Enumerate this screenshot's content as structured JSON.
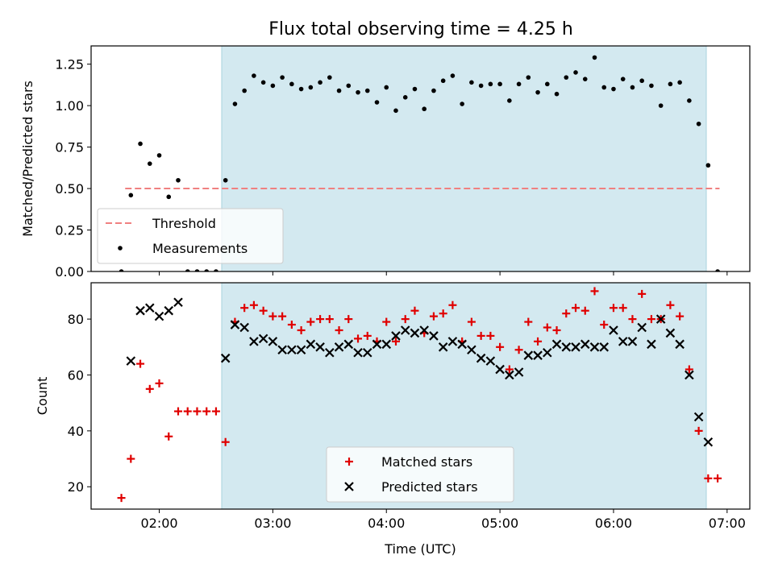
{
  "title": "Flux total observing time = 4.25 h",
  "colors": {
    "observing_window": "#d3e9f0",
    "observing_window_edge": "#a8d3de",
    "threshold": "#f08080",
    "measurements": "#000000",
    "matched": "#e00000",
    "predicted": "#000000"
  },
  "chart_data": [
    {
      "type": "scatter",
      "panel": "top",
      "ylabel": "Matched/Predicted stars",
      "xlabel": "",
      "ylim": [
        0,
        1.36
      ],
      "yticks": [
        0.0,
        0.25,
        0.5,
        0.75,
        1.0,
        1.25
      ],
      "ytick_labels": [
        "0.00",
        "0.25",
        "0.50",
        "0.75",
        "1.00",
        "1.25"
      ],
      "x_ticks_shown": false,
      "observing_window": [
        "02:33",
        "06:49"
      ],
      "threshold": {
        "name": "Threshold",
        "value": 0.5,
        "x_range": [
          "01:42",
          "06:56"
        ],
        "style": "dashed"
      },
      "legend": {
        "position": "lower-left",
        "entries": [
          "Threshold",
          "Measurements"
        ]
      },
      "series": [
        {
          "name": "Measurements",
          "marker": "dot",
          "x": [
            "01:40",
            "01:45",
            "01:50",
            "01:55",
            "02:00",
            "02:05",
            "02:10",
            "02:15",
            "02:20",
            "02:25",
            "02:30",
            "02:35",
            "02:40",
            "02:45",
            "02:50",
            "02:55",
            "03:00",
            "03:05",
            "03:10",
            "03:15",
            "03:20",
            "03:25",
            "03:30",
            "03:35",
            "03:40",
            "03:45",
            "03:50",
            "03:55",
            "04:00",
            "04:05",
            "04:10",
            "04:15",
            "04:20",
            "04:25",
            "04:30",
            "04:35",
            "04:40",
            "04:45",
            "04:50",
            "04:55",
            "05:00",
            "05:05",
            "05:10",
            "05:15",
            "05:20",
            "05:25",
            "05:30",
            "05:35",
            "05:40",
            "05:45",
            "05:50",
            "05:55",
            "06:00",
            "06:05",
            "06:10",
            "06:15",
            "06:20",
            "06:25",
            "06:30",
            "06:35",
            "06:40",
            "06:45",
            "06:50",
            "06:55"
          ],
          "y": [
            0.0,
            0.46,
            0.77,
            0.65,
            0.7,
            0.45,
            0.55,
            0.0,
            0.0,
            0.0,
            0.0,
            0.55,
            1.01,
            1.09,
            1.18,
            1.14,
            1.12,
            1.17,
            1.13,
            1.1,
            1.11,
            1.14,
            1.17,
            1.09,
            1.12,
            1.08,
            1.09,
            1.02,
            1.11,
            0.97,
            1.05,
            1.1,
            0.98,
            1.09,
            1.15,
            1.18,
            1.01,
            1.14,
            1.12,
            1.13,
            1.13,
            1.03,
            1.13,
            1.17,
            1.08,
            1.13,
            1.07,
            1.17,
            1.2,
            1.16,
            1.29,
            1.11,
            1.1,
            1.16,
            1.11,
            1.15,
            1.12,
            1.0,
            1.13,
            1.14,
            1.03,
            0.89,
            0.64,
            0.0
          ]
        }
      ]
    },
    {
      "type": "scatter",
      "panel": "bottom",
      "ylabel": "Count",
      "xlabel": "Time (UTC)",
      "ylim": [
        12,
        93
      ],
      "yticks": [
        20,
        40,
        60,
        80
      ],
      "ytick_labels": [
        "20",
        "40",
        "60",
        "80"
      ],
      "xlim": [
        "01:24",
        "07:12"
      ],
      "xticks": [
        "02:00",
        "03:00",
        "04:00",
        "05:00",
        "06:00",
        "07:00"
      ],
      "observing_window": [
        "02:33",
        "06:49"
      ],
      "legend": {
        "position": "lower-center",
        "entries": [
          "Matched stars",
          "Predicted stars"
        ]
      },
      "series": [
        {
          "name": "Matched stars",
          "marker": "plus",
          "x": [
            "01:40",
            "01:45",
            "01:50",
            "01:55",
            "02:00",
            "02:05",
            "02:10",
            "02:15",
            "02:20",
            "02:25",
            "02:30",
            "02:35",
            "02:40",
            "02:45",
            "02:50",
            "02:55",
            "03:00",
            "03:05",
            "03:10",
            "03:15",
            "03:20",
            "03:25",
            "03:30",
            "03:35",
            "03:40",
            "03:45",
            "03:50",
            "03:55",
            "04:00",
            "04:05",
            "04:10",
            "04:15",
            "04:20",
            "04:25",
            "04:30",
            "04:35",
            "04:40",
            "04:45",
            "04:50",
            "04:55",
            "05:00",
            "05:05",
            "05:10",
            "05:15",
            "05:20",
            "05:25",
            "05:30",
            "05:35",
            "05:40",
            "05:45",
            "05:50",
            "05:55",
            "06:00",
            "06:05",
            "06:10",
            "06:15",
            "06:20",
            "06:25",
            "06:30",
            "06:35",
            "06:40",
            "06:45",
            "06:50",
            "06:55"
          ],
          "y": [
            16,
            30,
            64,
            55,
            57,
            38,
            47,
            47,
            47,
            47,
            47,
            36,
            79,
            84,
            85,
            83,
            81,
            81,
            78,
            76,
            79,
            80,
            80,
            76,
            80,
            73,
            74,
            72,
            79,
            72,
            80,
            83,
            75,
            81,
            82,
            85,
            72,
            79,
            74,
            74,
            70,
            62,
            69,
            79,
            72,
            77,
            76,
            82,
            84,
            83,
            90,
            78,
            84,
            84,
            80,
            89,
            80,
            80,
            85,
            81,
            62,
            40,
            23,
            23
          ]
        },
        {
          "name": "Predicted stars",
          "marker": "x",
          "x": [
            "01:45",
            "01:50",
            "01:55",
            "02:00",
            "02:05",
            "02:10",
            "02:35",
            "02:40",
            "02:45",
            "02:50",
            "02:55",
            "03:00",
            "03:05",
            "03:10",
            "03:15",
            "03:20",
            "03:25",
            "03:30",
            "03:35",
            "03:40",
            "03:45",
            "03:50",
            "03:55",
            "04:00",
            "04:05",
            "04:10",
            "04:15",
            "04:20",
            "04:25",
            "04:30",
            "04:35",
            "04:40",
            "04:45",
            "04:50",
            "04:55",
            "05:00",
            "05:05",
            "05:10",
            "05:15",
            "05:20",
            "05:25",
            "05:30",
            "05:35",
            "05:40",
            "05:45",
            "05:50",
            "05:55",
            "06:00",
            "06:05",
            "06:10",
            "06:15",
            "06:20",
            "06:25",
            "06:30",
            "06:35",
            "06:40",
            "06:45",
            "06:50"
          ],
          "y": [
            65,
            83,
            84,
            81,
            83,
            86,
            66,
            78,
            77,
            72,
            73,
            72,
            69,
            69,
            69,
            71,
            70,
            68,
            70,
            71,
            68,
            68,
            71,
            71,
            74,
            76,
            75,
            76,
            74,
            70,
            72,
            71,
            69,
            66,
            65,
            62,
            60,
            61,
            67,
            67,
            68,
            71,
            70,
            70,
            71,
            70,
            70,
            76,
            72,
            72,
            77,
            71,
            80,
            75,
            71,
            60,
            45,
            36
          ]
        }
      ]
    }
  ]
}
